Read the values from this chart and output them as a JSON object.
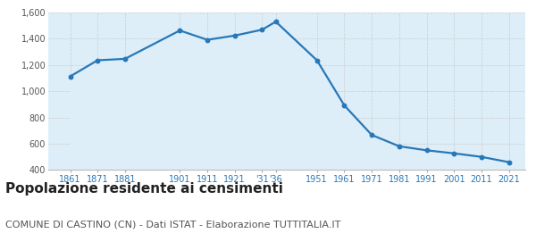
{
  "years": [
    1861,
    1871,
    1881,
    1901,
    1911,
    1921,
    1931,
    1936,
    1951,
    1961,
    1971,
    1981,
    1991,
    2001,
    2011,
    2021
  ],
  "population": [
    1113,
    1236,
    1247,
    1463,
    1392,
    1424,
    1469,
    1530,
    1236,
    892,
    667,
    581,
    550,
    527,
    500,
    460
  ],
  "ylim": [
    400,
    1600
  ],
  "yticks": [
    400,
    600,
    800,
    1000,
    1200,
    1400,
    1600
  ],
  "line_color": "#2878b8",
  "fill_color": "#ddeef8",
  "marker_color": "#2878b8",
  "grid_color": "#cccccc",
  "bg_color": "#ffffff",
  "plot_bg_color": "#ddeef8",
  "title": "Popolazione residente ai censimenti",
  "subtitle": "COMUNE DI CASTINO (CN) - Dati ISTAT - Elaborazione TUTTITALIA.IT",
  "title_fontsize": 11,
  "subtitle_fontsize": 8,
  "xtick_color": "#2878b8",
  "ytick_color": "#555555",
  "xlim_left": 1853,
  "xlim_right": 2027
}
